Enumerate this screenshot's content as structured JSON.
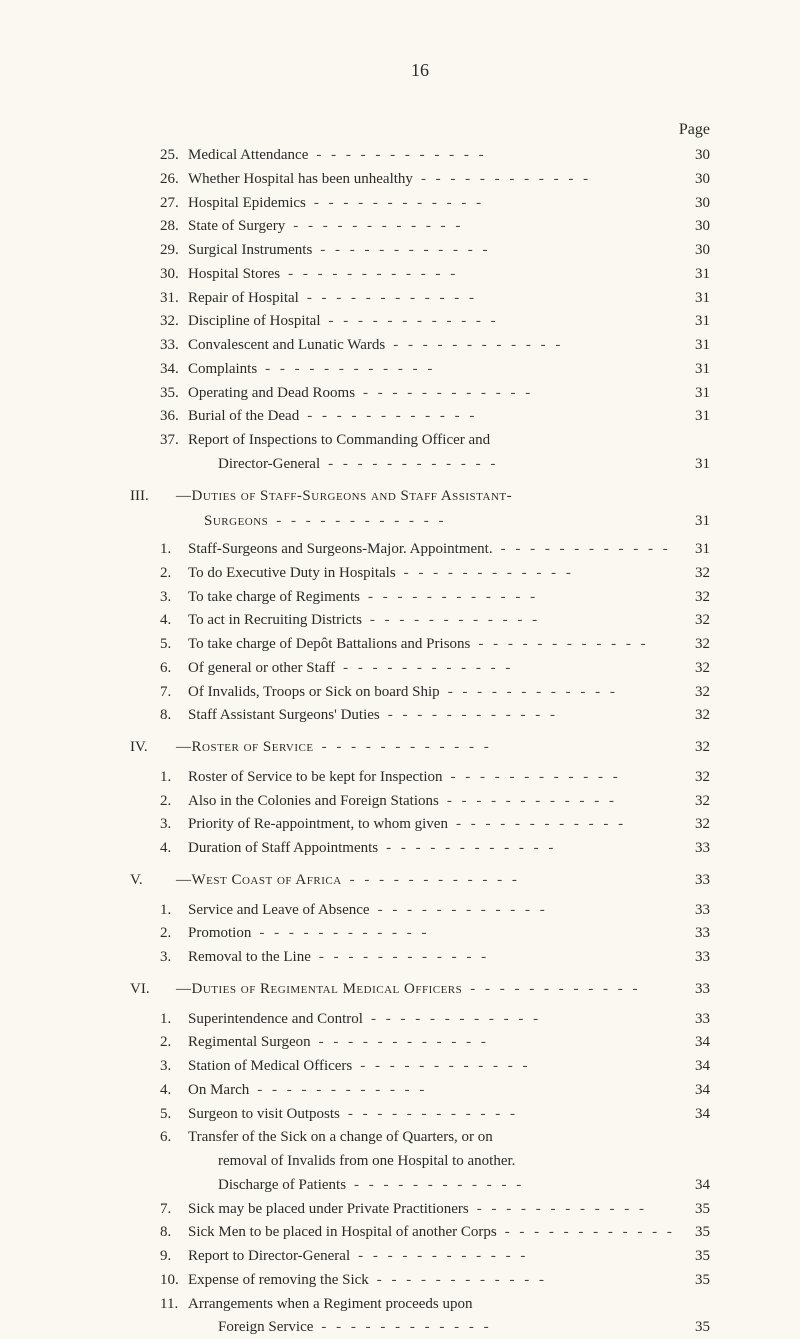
{
  "pageNumber": "16",
  "pageHeaderLabel": "Page",
  "leaderDashes": "-     -     -     -     -     -     -     -     -     -     -     -",
  "sections": {
    "pre": [
      {
        "num": "25.",
        "text": "Medical Attendance",
        "page": "30"
      },
      {
        "num": "26.",
        "text": "Whether Hospital has been unhealthy",
        "page": "30"
      },
      {
        "num": "27.",
        "text": "Hospital Epidemics",
        "page": "30"
      },
      {
        "num": "28.",
        "text": "State of Surgery",
        "page": "30"
      },
      {
        "num": "29.",
        "text": "Surgical Instruments",
        "page": "30"
      },
      {
        "num": "30.",
        "text": "Hospital Stores",
        "page": "31"
      },
      {
        "num": "31.",
        "text": "Repair of Hospital",
        "page": "31"
      },
      {
        "num": "32.",
        "text": "Discipline of Hospital",
        "page": "31"
      },
      {
        "num": "33.",
        "text": "Convalescent and Lunatic Wards",
        "page": "31"
      },
      {
        "num": "34.",
        "text": "Complaints",
        "page": "31"
      },
      {
        "num": "35.",
        "text": "Operating and Dead Rooms",
        "page": "31"
      },
      {
        "num": "36.",
        "text": "Burial of the Dead",
        "page": "31"
      },
      {
        "num": "37.",
        "text": "Report of Inspections to Commanding Officer and",
        "page": ""
      },
      {
        "num": "",
        "text": "Director-General",
        "page": "31",
        "cont": true
      }
    ],
    "iii": {
      "num": "III.",
      "title": "—Duties of Staff-Surgeons and Staff Assistant-",
      "title2": "Surgeons",
      "page": "31",
      "items": [
        {
          "num": "1.",
          "text": "Staff-Surgeons and Surgeons-Major.  Appointment.",
          "page": "31"
        },
        {
          "num": "2.",
          "text": "To do Executive Duty in Hospitals",
          "page": "32"
        },
        {
          "num": "3.",
          "text": "To take charge of Regiments",
          "page": "32"
        },
        {
          "num": "4.",
          "text": "To act in Recruiting Districts",
          "page": "32"
        },
        {
          "num": "5.",
          "text": "To take charge of Depôt Battalions and Prisons",
          "page": "32"
        },
        {
          "num": "6.",
          "text": "Of general or other Staff",
          "page": "32"
        },
        {
          "num": "7.",
          "text": "Of Invalids, Troops or Sick on board Ship",
          "page": "32"
        },
        {
          "num": "8.",
          "text": "Staff Assistant Surgeons' Duties",
          "page": "32"
        }
      ]
    },
    "iv": {
      "num": "IV.",
      "title": "—Roster of Service",
      "page": "32",
      "items": [
        {
          "num": "1.",
          "text": "Roster of Service to be kept for Inspection",
          "page": "32"
        },
        {
          "num": "2.",
          "text": "Also in the Colonies and Foreign Stations",
          "page": "32"
        },
        {
          "num": "3.",
          "text": "Priority of Re-appointment, to whom given",
          "page": "32"
        },
        {
          "num": "4.",
          "text": "Duration of Staff Appointments",
          "page": "33"
        }
      ]
    },
    "v": {
      "num": "V.",
      "title": "—West Coast of Africa",
      "page": "33",
      "items": [
        {
          "num": "1.",
          "text": "Service and Leave of Absence",
          "page": "33"
        },
        {
          "num": "2.",
          "text": "Promotion",
          "page": "33"
        },
        {
          "num": "3.",
          "text": "Removal to the Line",
          "page": "33"
        }
      ]
    },
    "vi": {
      "num": "VI.",
      "title": "—Duties of Regimental Medical Officers",
      "page": "33",
      "items": [
        {
          "num": "1.",
          "text": "Superintendence and Control",
          "page": "33"
        },
        {
          "num": "2.",
          "text": "Regimental Surgeon",
          "page": "34"
        },
        {
          "num": "3.",
          "text": "Station of Medical Officers",
          "page": "34"
        },
        {
          "num": "4.",
          "text": "On March",
          "page": "34"
        },
        {
          "num": "5.",
          "text": "Surgeon to visit Outposts",
          "page": "34"
        },
        {
          "num": "6.",
          "text": "Transfer of the Sick on a change of Quarters, or on",
          "page": ""
        },
        {
          "num": "",
          "text": "removal of Invalids from one Hospital to another.",
          "page": "",
          "cont": true
        },
        {
          "num": "",
          "text": "Discharge of Patients",
          "page": "34",
          "cont": true
        },
        {
          "num": "7.",
          "text": "Sick may be placed under Private Practitioners",
          "page": "35"
        },
        {
          "num": "8.",
          "text": "Sick Men to be placed in Hospital of another Corps",
          "page": "35"
        },
        {
          "num": "9.",
          "text": "Report to Director-General",
          "page": "35"
        },
        {
          "num": "10.",
          "text": "Expense of removing the Sick",
          "page": "35"
        },
        {
          "num": "11.",
          "text": "Arrangements when a Regiment proceeds upon",
          "page": ""
        },
        {
          "num": "",
          "text": "Foreign Service",
          "page": "35",
          "cont": true
        }
      ]
    }
  }
}
